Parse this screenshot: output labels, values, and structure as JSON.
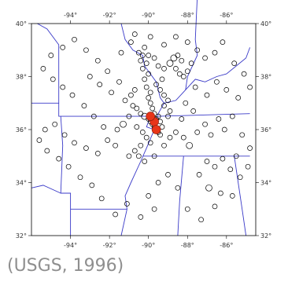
{
  "caption": "(USGS, 1996)",
  "colors": {
    "border": "#3a3ac8",
    "frame": "#000000",
    "event": "#000000",
    "major_event": "#e8351a"
  },
  "axes": {
    "lon_min": -96,
    "lon_max": -84.5,
    "lat_min": 32,
    "lat_max": 40,
    "lon_ticks": [
      -94,
      -92,
      -90,
      -88,
      -86
    ],
    "lat_ticks": [
      32,
      34,
      36,
      38,
      40
    ],
    "lon_tick_labels": [
      "-94°",
      "-92°",
      "-90°",
      "-88°",
      "-86°"
    ],
    "lat_tick_labels": [
      "32°",
      "34°",
      "36°",
      "38°",
      "40°"
    ]
  },
  "chart_data": {
    "type": "scatter",
    "xlabel": "",
    "ylabel": "",
    "events": [
      [
        -90.6,
        36.8,
        3
      ],
      [
        -90.4,
        36.6,
        3
      ],
      [
        -90.2,
        36.5,
        4
      ],
      [
        -90.0,
        36.4,
        3
      ],
      [
        -89.9,
        36.3,
        3
      ],
      [
        -89.8,
        36.2,
        3
      ],
      [
        -89.7,
        36.1,
        3
      ],
      [
        -89.6,
        36.0,
        3
      ],
      [
        -89.5,
        35.9,
        3
      ],
      [
        -89.4,
        35.8,
        3
      ],
      [
        -89.6,
        36.4,
        3
      ],
      [
        -89.7,
        36.6,
        3
      ],
      [
        -89.5,
        36.5,
        3
      ],
      [
        -89.4,
        36.3,
        3
      ],
      [
        -89.3,
        36.1,
        3
      ],
      [
        -89.8,
        36.8,
        3
      ],
      [
        -89.9,
        37.0,
        3
      ],
      [
        -90.0,
        37.2,
        3
      ],
      [
        -89.9,
        37.4,
        3
      ],
      [
        -90.1,
        37.6,
        3
      ],
      [
        -90.2,
        37.9,
        3
      ],
      [
        -90.0,
        38.1,
        3
      ],
      [
        -90.3,
        38.3,
        3
      ],
      [
        -90.1,
        38.5,
        3
      ],
      [
        -90.4,
        38.6,
        3
      ],
      [
        -90.3,
        38.8,
        3
      ],
      [
        -90.5,
        38.9,
        3
      ],
      [
        -90.2,
        39.1,
        3
      ],
      [
        -90.0,
        38.8,
        3
      ],
      [
        -89.7,
        38.7,
        3
      ],
      [
        -89.5,
        38.4,
        3
      ],
      [
        -89.2,
        38.3,
        3
      ],
      [
        -88.9,
        38.5,
        4
      ],
      [
        -88.6,
        38.3,
        3
      ],
      [
        -88.4,
        38.1,
        3
      ],
      [
        -88.2,
        38.0,
        3
      ],
      [
        -88.0,
        38.2,
        3
      ],
      [
        -87.8,
        38.5,
        3
      ],
      [
        -88.3,
        38.6,
        3
      ],
      [
        -88.7,
        38.7,
        4
      ],
      [
        -88.5,
        38.8,
        3
      ],
      [
        -89.3,
        37.9,
        3
      ],
      [
        -89.6,
        37.7,
        3
      ],
      [
        -89.4,
        37.5,
        3
      ],
      [
        -89.2,
        37.3,
        3
      ],
      [
        -89.0,
        37.1,
        3
      ],
      [
        -89.2,
        36.9,
        3
      ],
      [
        -88.9,
        36.7,
        3
      ],
      [
        -89.0,
        36.5,
        3
      ],
      [
        -90.7,
        37.5,
        3
      ],
      [
        -90.9,
        37.3,
        3
      ],
      [
        -91.2,
        37.1,
        3
      ],
      [
        -90.8,
        36.9,
        3
      ],
      [
        -91.0,
        36.5,
        3
      ],
      [
        -91.3,
        36.2,
        4
      ],
      [
        -91.6,
        36.0,
        3
      ],
      [
        -90.6,
        36.1,
        3
      ],
      [
        -90.3,
        35.9,
        3
      ],
      [
        -90.1,
        35.7,
        3
      ],
      [
        -89.9,
        35.5,
        3
      ],
      [
        -90.4,
        35.4,
        3
      ],
      [
        -90.7,
        35.2,
        3
      ],
      [
        -91.0,
        35.0,
        3
      ],
      [
        -90.5,
        35.0,
        3
      ],
      [
        -90.2,
        34.8,
        3
      ],
      [
        -89.7,
        35.0,
        3
      ],
      [
        -89.2,
        35.4,
        3
      ],
      [
        -88.9,
        35.7,
        3
      ],
      [
        -88.6,
        35.9,
        3
      ],
      [
        -88.2,
        35.7,
        3
      ],
      [
        -87.9,
        35.4,
        4
      ],
      [
        -87.5,
        35.9,
        3
      ],
      [
        -87.1,
        36.2,
        3
      ],
      [
        -86.8,
        35.8,
        3
      ],
      [
        -86.4,
        36.4,
        3
      ],
      [
        -86.1,
        36.0,
        3
      ],
      [
        -85.7,
        36.5,
        3
      ],
      [
        -85.2,
        35.8,
        3
      ],
      [
        -84.8,
        35.3,
        3
      ],
      [
        -85.5,
        35.0,
        3
      ],
      [
        -84.9,
        34.6,
        3
      ],
      [
        -85.3,
        34.2,
        3
      ],
      [
        -85.8,
        34.5,
        3
      ],
      [
        -86.2,
        34.9,
        3
      ],
      [
        -86.6,
        34.6,
        3
      ],
      [
        -87.0,
        34.8,
        3
      ],
      [
        -87.4,
        34.3,
        3
      ],
      [
        -86.9,
        33.8,
        4
      ],
      [
        -86.3,
        33.6,
        3
      ],
      [
        -85.7,
        33.5,
        3
      ],
      [
        -86.6,
        33.1,
        3
      ],
      [
        -87.3,
        32.6,
        3
      ],
      [
        -88.0,
        33.0,
        3
      ],
      [
        -88.5,
        33.8,
        3
      ],
      [
        -89.0,
        34.3,
        3
      ],
      [
        -89.5,
        34.0,
        3
      ],
      [
        -90.0,
        33.5,
        3
      ],
      [
        -89.7,
        33.0,
        3
      ],
      [
        -90.4,
        32.7,
        3
      ],
      [
        -91.1,
        33.2,
        3
      ],
      [
        -91.7,
        32.8,
        3
      ],
      [
        -92.4,
        33.4,
        3
      ],
      [
        -92.9,
        33.9,
        3
      ],
      [
        -93.5,
        34.2,
        3
      ],
      [
        -94.1,
        34.6,
        3
      ],
      [
        -94.6,
        34.9,
        3
      ],
      [
        -95.2,
        35.2,
        3
      ],
      [
        -95.6,
        35.6,
        3
      ],
      [
        -95.3,
        36.0,
        3
      ],
      [
        -94.8,
        36.2,
        3
      ],
      [
        -94.3,
        35.8,
        3
      ],
      [
        -93.8,
        35.5,
        3
      ],
      [
        -93.2,
        35.3,
        3
      ],
      [
        -92.6,
        35.1,
        3
      ],
      [
        -92.1,
        35.6,
        3
      ],
      [
        -91.7,
        35.4,
        3
      ],
      [
        -92.3,
        36.1,
        3
      ],
      [
        -92.8,
        36.5,
        3
      ],
      [
        -93.3,
        36.9,
        3
      ],
      [
        -93.9,
        37.3,
        3
      ],
      [
        -94.4,
        37.6,
        3
      ],
      [
        -94.9,
        37.9,
        3
      ],
      [
        -95.4,
        38.3,
        3
      ],
      [
        -95.0,
        38.8,
        3
      ],
      [
        -94.4,
        39.1,
        3
      ],
      [
        -93.8,
        39.4,
        3
      ],
      [
        -93.2,
        39.0,
        3
      ],
      [
        -92.6,
        38.6,
        3
      ],
      [
        -92.1,
        38.2,
        3
      ],
      [
        -91.5,
        37.8,
        3
      ],
      [
        -91.9,
        37.4,
        3
      ],
      [
        -92.5,
        37.7,
        3
      ],
      [
        -93.0,
        38.0,
        3
      ],
      [
        -91.4,
        38.9,
        3
      ],
      [
        -90.9,
        39.3,
        3
      ],
      [
        -90.7,
        39.6,
        3
      ],
      [
        -89.9,
        39.5,
        3
      ],
      [
        -89.2,
        39.2,
        3
      ],
      [
        -88.6,
        39.5,
        3
      ],
      [
        -88.0,
        39.3,
        3
      ],
      [
        -87.5,
        39.0,
        3
      ],
      [
        -87.1,
        38.7,
        3
      ],
      [
        -86.6,
        38.9,
        3
      ],
      [
        -86.2,
        39.3,
        3
      ],
      [
        -85.6,
        38.5,
        3
      ],
      [
        -85.1,
        38.1,
        3
      ],
      [
        -84.8,
        37.6,
        3
      ],
      [
        -85.4,
        37.2,
        3
      ],
      [
        -86.0,
        37.5,
        3
      ],
      [
        -86.5,
        37.8,
        3
      ],
      [
        -87.0,
        37.3,
        3
      ],
      [
        -87.6,
        37.6,
        3
      ],
      [
        -88.1,
        37.0,
        3
      ],
      [
        -87.7,
        36.7,
        3
      ],
      [
        -88.3,
        36.4,
        3
      ]
    ],
    "major_events": [
      [
        -89.7,
        36.3
      ],
      [
        -89.9,
        36.5
      ],
      [
        -89.6,
        36.0
      ]
    ]
  }
}
